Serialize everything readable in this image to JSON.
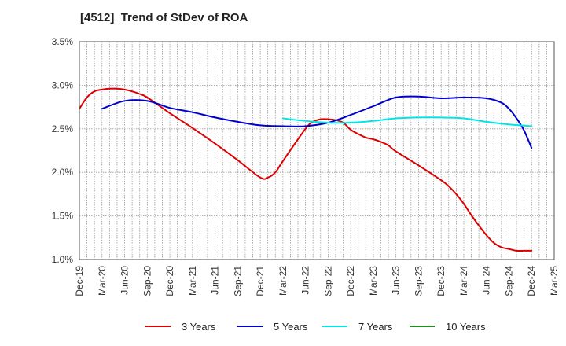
{
  "chart_data": {
    "type": "line",
    "title": "[4512]  Trend of StDev of ROA",
    "xlabel": "",
    "ylabel": "",
    "ylim": [
      1.0,
      3.5
    ],
    "y_ticks": [
      "1.0%",
      "1.5%",
      "2.0%",
      "2.5%",
      "3.0%",
      "3.5%"
    ],
    "x_ticks": [
      "Dec-19",
      "Mar-20",
      "Jun-20",
      "Sep-20",
      "Dec-20",
      "Mar-21",
      "Jun-21",
      "Sep-21",
      "Dec-21",
      "Mar-22",
      "Jun-22",
      "Sep-22",
      "Dec-22",
      "Mar-23",
      "Jun-23",
      "Sep-23",
      "Dec-23",
      "Mar-24",
      "Jun-24",
      "Sep-24",
      "Dec-24",
      "Mar-25"
    ],
    "grid": true,
    "legend_position": "bottom",
    "series": [
      {
        "name": "3 Years",
        "color": "#dd0000",
        "x": [
          "Dec-19",
          "Jan-20",
          "Feb-20",
          "Mar-20",
          "Apr-20",
          "May-20",
          "Jun-20",
          "Jul-20",
          "Aug-20",
          "Sep-20",
          "Dec-20",
          "Mar-21",
          "Jun-21",
          "Sep-21",
          "Dec-21",
          "Jan-22",
          "Feb-22",
          "Mar-22",
          "Jun-22",
          "Jul-22",
          "Aug-22",
          "Sep-22",
          "Oct-22",
          "Nov-22",
          "Dec-22",
          "Jan-23",
          "Feb-23",
          "Mar-23",
          "Apr-23",
          "May-23",
          "Jun-23",
          "Sep-23",
          "Dec-23",
          "Jan-24",
          "Feb-24",
          "Mar-24",
          "Apr-24",
          "May-24",
          "Jun-24",
          "Jul-24",
          "Aug-24",
          "Sep-24",
          "Oct-24",
          "Nov-24",
          "Dec-24"
        ],
        "values": [
          2.73,
          2.86,
          2.93,
          2.95,
          2.96,
          2.96,
          2.95,
          2.93,
          2.9,
          2.86,
          2.68,
          2.51,
          2.33,
          2.14,
          1.94,
          1.94,
          2.0,
          2.13,
          2.5,
          2.58,
          2.61,
          2.61,
          2.6,
          2.57,
          2.49,
          2.44,
          2.4,
          2.38,
          2.35,
          2.31,
          2.24,
          2.08,
          1.91,
          1.84,
          1.75,
          1.64,
          1.51,
          1.39,
          1.28,
          1.19,
          1.14,
          1.12,
          1.1,
          1.1,
          1.1
        ]
      },
      {
        "name": "5 Years",
        "color": "#0000cc",
        "x": [
          "Mar-20",
          "Jun-20",
          "Sep-20",
          "Dec-20",
          "Mar-21",
          "Jun-21",
          "Sep-21",
          "Dec-21",
          "Mar-22",
          "Jun-22",
          "Sep-22",
          "Dec-22",
          "Mar-23",
          "Jun-23",
          "Sep-23",
          "Dec-23",
          "Mar-24",
          "Jun-24",
          "Aug-24",
          "Sep-24",
          "Oct-24",
          "Nov-24",
          "Dec-24"
        ],
        "values": [
          2.73,
          2.82,
          2.82,
          2.74,
          2.69,
          2.63,
          2.58,
          2.54,
          2.53,
          2.53,
          2.57,
          2.66,
          2.76,
          2.86,
          2.87,
          2.85,
          2.86,
          2.85,
          2.8,
          2.73,
          2.62,
          2.48,
          2.28
        ]
      },
      {
        "name": "7 Years",
        "color": "#00e5e5",
        "x": [
          "Mar-22",
          "Jun-22",
          "Sep-22",
          "Dec-22",
          "Mar-23",
          "Jun-23",
          "Sep-23",
          "Dec-23",
          "Mar-24",
          "Jun-24",
          "Sep-24",
          "Dec-24"
        ],
        "values": [
          2.62,
          2.59,
          2.57,
          2.57,
          2.59,
          2.62,
          2.63,
          2.63,
          2.62,
          2.58,
          2.55,
          2.53
        ]
      },
      {
        "name": "10 Years",
        "color": "#228b22",
        "x": [],
        "values": []
      }
    ]
  }
}
